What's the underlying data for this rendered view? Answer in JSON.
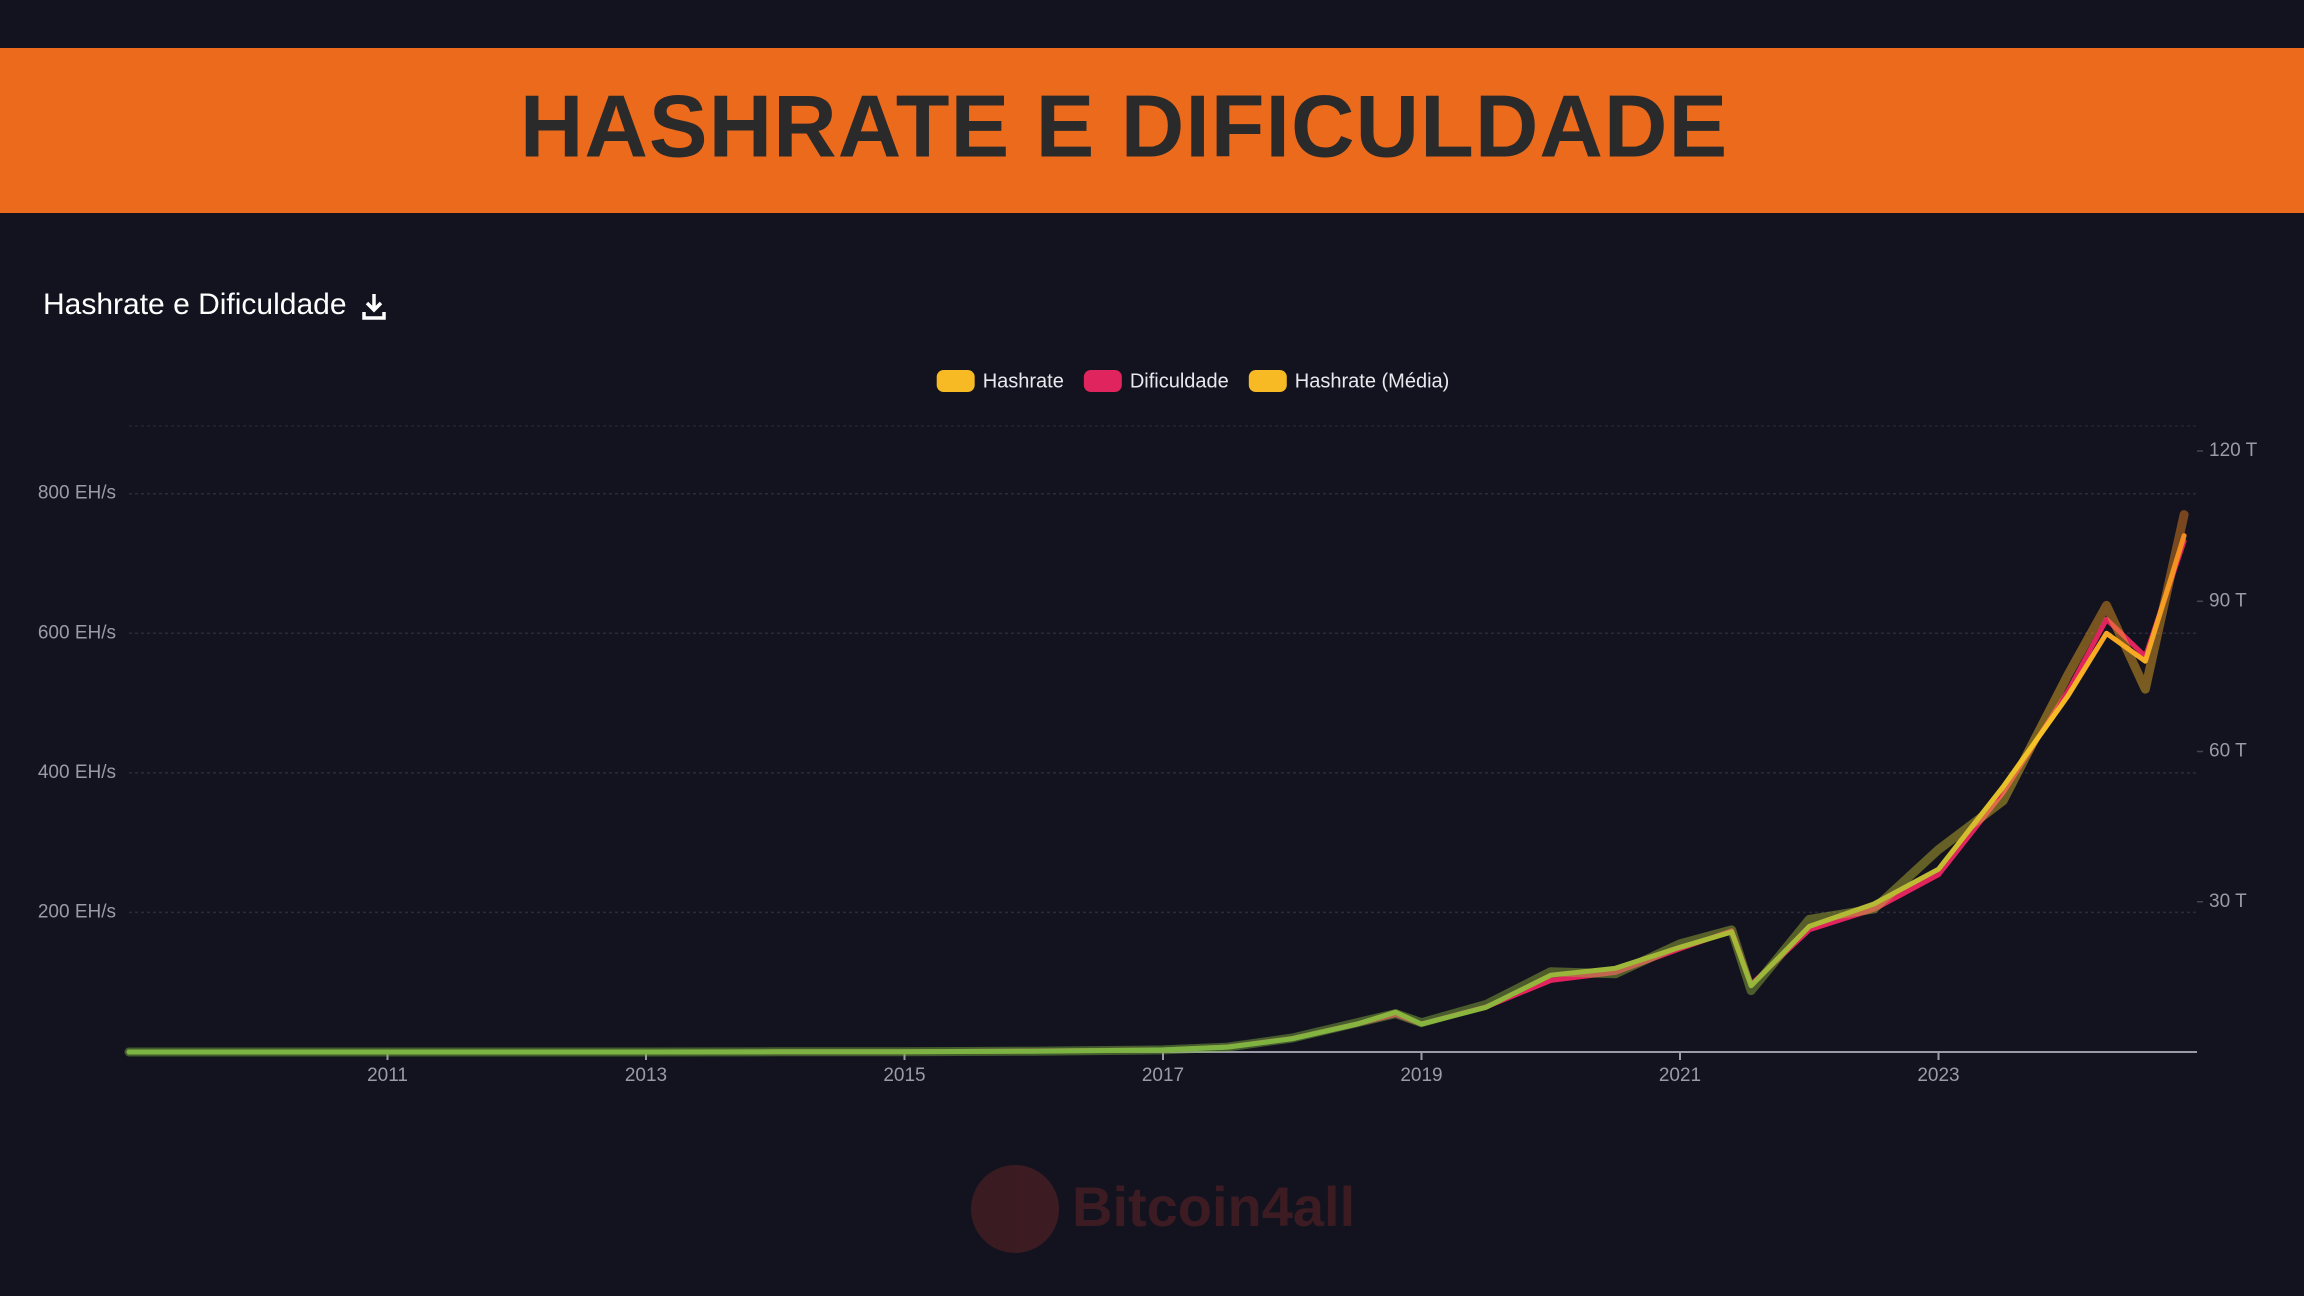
{
  "banner": {
    "title": "HASHRATE E DIFICULDADE"
  },
  "chart_data": {
    "type": "line",
    "title": "Hashrate e Dificuldade",
    "x": [
      2009,
      2010,
      2011,
      2012,
      2013,
      2014,
      2015,
      2016,
      2017,
      2017.5,
      2018,
      2018.5,
      2018.8,
      2019,
      2019.5,
      2020,
      2020.5,
      2021,
      2021.4,
      2021.55,
      2022,
      2022.5,
      2023,
      2023.5,
      2024,
      2024.3,
      2024.6,
      2024.9
    ],
    "xlim": [
      2009,
      2025
    ],
    "xticks": [
      2011,
      2013,
      2015,
      2017,
      2019,
      2021,
      2023
    ],
    "ylim": [
      0,
      897
    ],
    "yticks": [
      {
        "value": 200,
        "label": "200 EH/s"
      },
      {
        "value": 400,
        "label": "400 EH/s"
      },
      {
        "value": 600,
        "label": "600 EH/s"
      },
      {
        "value": 800,
        "label": "800 EH/s"
      }
    ],
    "y2lim": [
      0,
      125
    ],
    "y2ticks": [
      {
        "value": 30,
        "label": "30 T"
      },
      {
        "value": 60,
        "label": "60 T"
      },
      {
        "value": 90,
        "label": "90 T"
      },
      {
        "value": 120,
        "label": "120 T"
      }
    ],
    "grid": true,
    "legend": "top",
    "series": [
      {
        "name": "Hashrate",
        "color": "#f7b924",
        "colorscale": [
          "#7cb342",
          "#f7c325",
          "#f26b1d"
        ],
        "values": [
          0,
          0,
          0,
          0,
          0.01,
          0.3,
          0.4,
          1.2,
          3,
          7,
          20,
          42,
          55,
          42,
          68,
          115,
          112,
          155,
          175,
          88,
          190,
          205,
          290,
          360,
          540,
          640,
          520,
          770
        ]
      },
      {
        "name": "Dificuldade",
        "color": "#e0245e",
        "axis": "y2",
        "values": [
          0,
          0,
          0,
          0,
          0,
          0.04,
          0.05,
          0.2,
          0.4,
          1,
          2.7,
          5.6,
          7.5,
          5.6,
          9,
          14.3,
          15.9,
          20.6,
          24.2,
          13.5,
          24.4,
          28.5,
          35.4,
          51.8,
          72,
          86.4,
          79,
          102
        ]
      },
      {
        "name": "Hashrate (Média)",
        "color": "#f7b924",
        "colorscale": [
          "#7cb342",
          "#f7c325",
          "#f26b1d"
        ],
        "values": [
          0,
          0,
          0,
          0,
          0.01,
          0.3,
          0.4,
          1.2,
          3,
          7,
          19,
          40,
          57,
          40,
          64,
          110,
          120,
          150,
          172,
          95,
          180,
          212,
          262,
          380,
          510,
          600,
          560,
          740
        ]
      }
    ]
  },
  "watermark": {
    "text": "Bitcoin4all"
  }
}
